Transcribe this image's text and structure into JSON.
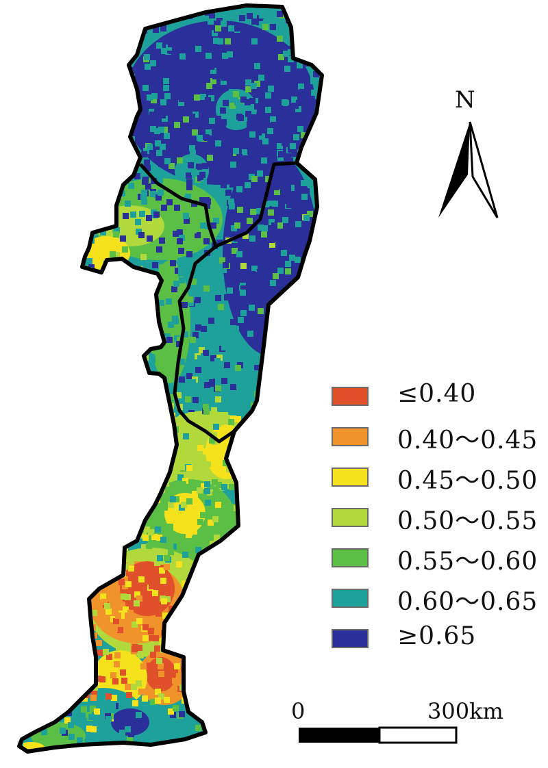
{
  "map": {
    "north_label": "N",
    "legend": [
      {
        "label": "≤0.40",
        "color": "#e0502a"
      },
      {
        "label": "0.40～0.45",
        "color": "#f0932b"
      },
      {
        "label": "0.45～0.50",
        "color": "#f5e11c"
      },
      {
        "label": "0.50～0.55",
        "color": "#b2d93b"
      },
      {
        "label": "0.55～0.60",
        "color": "#5cbf45"
      },
      {
        "label": "0.60～0.65",
        "color": "#1ea19a"
      },
      {
        "label": "≥0.65",
        "color": "#2b2f9a"
      }
    ],
    "scale_bar": {
      "start_label": "0",
      "end_label": "300km"
    }
  }
}
